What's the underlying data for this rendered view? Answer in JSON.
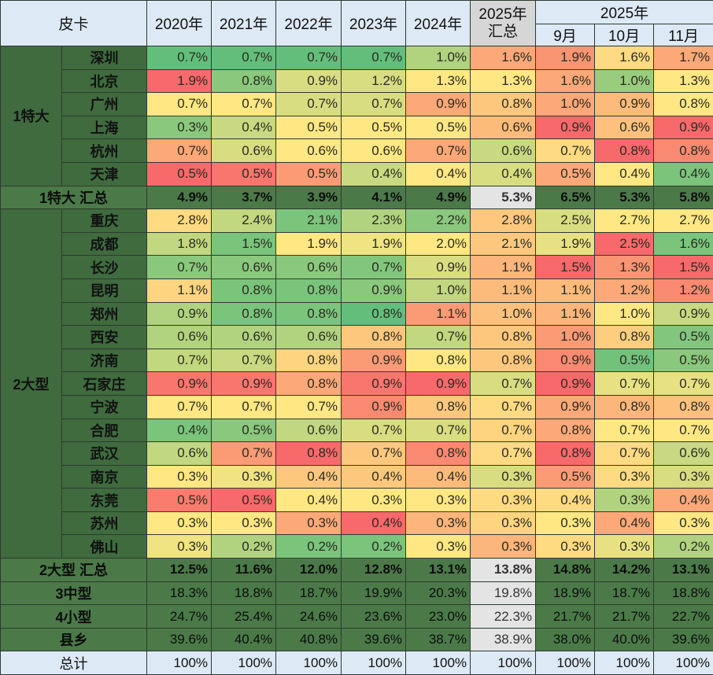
{
  "chart_data": {
    "type": "heatmap",
    "title": "皮卡",
    "header": {
      "corner": "皮卡",
      "years": [
        "2020年",
        "2021年",
        "2022年",
        "2023年",
        "2024年"
      ],
      "summary_top": "2025年",
      "summary_bottom": "汇总",
      "month_group": "2025年",
      "months": [
        "9月",
        "10月",
        "11月"
      ]
    },
    "heat_colors": {
      "low": "#63be7b",
      "mid": "#ffe784",
      "high": "#f8696b"
    },
    "groups": [
      {
        "label": "1特大",
        "rows": [
          {
            "city": "深圳",
            "values": [
              "0.7%",
              "0.7%",
              "0.7%",
              "0.7%",
              "1.0%",
              "1.6%",
              "1.9%",
              "1.6%",
              "1.7%"
            ],
            "heat": [
              0,
              0,
              0,
              0,
              1,
              3,
              3.3,
              2.2,
              3
            ]
          },
          {
            "city": "北京",
            "values": [
              "1.9%",
              "0.8%",
              "0.9%",
              "1.2%",
              "1.3%",
              "1.3%",
              "1.6%",
              "1.0%",
              "1.3%"
            ],
            "heat": [
              4,
              0.5,
              1.5,
              1.5,
              2,
              2,
              3,
              0.7,
              2
            ]
          },
          {
            "city": "广州",
            "values": [
              "0.7%",
              "0.7%",
              "0.7%",
              "0.7%",
              "0.9%",
              "0.8%",
              "1.0%",
              "0.9%",
              "0.8%"
            ],
            "heat": [
              2,
              2,
              1.5,
              1.5,
              3,
              2.5,
              3,
              2.7,
              2
            ]
          },
          {
            "city": "上海",
            "values": [
              "0.3%",
              "0.4%",
              "0.5%",
              "0.5%",
              "0.5%",
              "0.6%",
              "0.9%",
              "0.6%",
              "0.9%"
            ],
            "heat": [
              0.5,
              1.3,
              2,
              2,
              2,
              2.7,
              4,
              2.6,
              4
            ]
          },
          {
            "city": "杭州",
            "values": [
              "0.7%",
              "0.6%",
              "0.6%",
              "0.6%",
              "0.7%",
              "0.6%",
              "0.7%",
              "0.8%",
              "0.8%"
            ],
            "heat": [
              3,
              1.5,
              2,
              2,
              3,
              1.3,
              2.2,
              4,
              3.5
            ]
          },
          {
            "city": "天津",
            "values": [
              "0.5%",
              "0.5%",
              "0.5%",
              "0.4%",
              "0.4%",
              "0.4%",
              "0.5%",
              "0.4%",
              "0.4%"
            ],
            "heat": [
              4,
              3.8,
              3.2,
              1.3,
              2,
              1.5,
              3,
              2,
              0.3
            ]
          }
        ],
        "summary": {
          "label": "1特大 汇总",
          "values": [
            "4.9%",
            "3.7%",
            "3.9%",
            "4.1%",
            "4.9%",
            "5.3%",
            "6.5%",
            "5.3%",
            "5.8%"
          ]
        }
      },
      {
        "label": "2大型",
        "rows": [
          {
            "city": "重庆",
            "values": [
              "2.8%",
              "2.4%",
              "2.1%",
              "2.3%",
              "2.2%",
              "2.8%",
              "2.5%",
              "2.7%",
              "2.7%"
            ],
            "heat": [
              2.2,
              1.2,
              0.3,
              1,
              0.5,
              2.5,
              1.5,
              2,
              2
            ]
          },
          {
            "city": "成都",
            "values": [
              "1.8%",
              "1.5%",
              "1.9%",
              "1.9%",
              "2.0%",
              "2.1%",
              "1.9%",
              "2.5%",
              "1.6%"
            ],
            "heat": [
              1.2,
              0.3,
              2,
              1.8,
              2,
              2.5,
              1.7,
              4,
              0.3
            ]
          },
          {
            "city": "长沙",
            "values": [
              "0.7%",
              "0.6%",
              "0.6%",
              "0.7%",
              "0.9%",
              "1.1%",
              "1.5%",
              "1.3%",
              "1.5%"
            ],
            "heat": [
              0.5,
              0.5,
              0.5,
              0.4,
              1.5,
              2.8,
              4,
              3.3,
              4
            ]
          },
          {
            "city": "昆明",
            "values": [
              "1.1%",
              "0.8%",
              "0.8%",
              "0.9%",
              "1.0%",
              "1.1%",
              "1.1%",
              "1.2%",
              "1.2%"
            ],
            "heat": [
              2.3,
              0.3,
              0.3,
              0.5,
              1.2,
              2.7,
              2.7,
              3,
              3.5
            ]
          },
          {
            "city": "郑州",
            "values": [
              "0.9%",
              "0.8%",
              "0.8%",
              "0.8%",
              "1.1%",
              "1.0%",
              "1.1%",
              "1.0%",
              "0.9%"
            ],
            "heat": [
              1,
              0.3,
              0.3,
              0,
              3.2,
              2.6,
              2.8,
              2,
              1.3
            ]
          },
          {
            "city": "西安",
            "values": [
              "0.6%",
              "0.6%",
              "0.6%",
              "0.8%",
              "0.7%",
              "0.8%",
              "1.0%",
              "0.8%",
              "0.5%"
            ],
            "heat": [
              1,
              1,
              1,
              2.5,
              1.2,
              2.5,
              3.2,
              2.4,
              0.4
            ]
          },
          {
            "city": "济南",
            "values": [
              "0.7%",
              "0.7%",
              "0.8%",
              "0.9%",
              "0.8%",
              "0.8%",
              "0.9%",
              "0.5%",
              "0.5%"
            ],
            "heat": [
              1.2,
              1.3,
              2.3,
              3.2,
              2,
              2.5,
              3.5,
              0.2,
              0.5
            ]
          },
          {
            "city": "石家庄",
            "values": [
              "0.9%",
              "0.9%",
              "0.8%",
              "0.9%",
              "0.9%",
              "0.7%",
              "0.9%",
              "0.7%",
              "0.7%"
            ],
            "heat": [
              3.8,
              3.8,
              3,
              3.8,
              4,
              1.5,
              4,
              1.7,
              1.7
            ]
          },
          {
            "city": "宁波",
            "values": [
              "0.7%",
              "0.7%",
              "0.7%",
              "0.9%",
              "0.8%",
              "0.7%",
              "0.9%",
              "0.8%",
              "0.8%"
            ],
            "heat": [
              2,
              2,
              2,
              3.5,
              2.5,
              2.2,
              3,
              2.8,
              2.6
            ]
          },
          {
            "city": "合肥",
            "values": [
              "0.4%",
              "0.5%",
              "0.6%",
              "0.7%",
              "0.7%",
              "0.7%",
              "0.8%",
              "0.7%",
              "0.7%"
            ],
            "heat": [
              0.3,
              0.5,
              1.2,
              1.5,
              1.5,
              2.3,
              3,
              2,
              2
            ]
          },
          {
            "city": "武汉",
            "values": [
              "0.6%",
              "0.7%",
              "0.8%",
              "0.7%",
              "0.8%",
              "0.7%",
              "0.8%",
              "0.7%",
              "0.6%"
            ],
            "heat": [
              1.2,
              3.2,
              4,
              2.5,
              3.5,
              2.2,
              4,
              2.2,
              1.3
            ]
          },
          {
            "city": "南京",
            "values": [
              "0.3%",
              "0.3%",
              "0.4%",
              "0.4%",
              "0.4%",
              "0.3%",
              "0.5%",
              "0.3%",
              "0.3%"
            ],
            "heat": [
              2,
              1.8,
              2.5,
              2.5,
              2.7,
              1.5,
              3.2,
              2.2,
              1.5
            ]
          },
          {
            "city": "东莞",
            "values": [
              "0.5%",
              "0.5%",
              "0.4%",
              "0.3%",
              "0.3%",
              "0.3%",
              "0.4%",
              "0.3%",
              "0.4%"
            ],
            "heat": [
              3.7,
              4,
              2,
              2,
              2,
              2.2,
              2.2,
              1,
              3
            ]
          },
          {
            "city": "苏州",
            "values": [
              "0.3%",
              "0.3%",
              "0.3%",
              "0.4%",
              "0.3%",
              "0.3%",
              "0.3%",
              "0.4%",
              "0.3%"
            ],
            "heat": [
              2,
              2,
              3,
              4,
              2.8,
              2.3,
              2,
              3,
              2
            ]
          },
          {
            "city": "佛山",
            "values": [
              "0.3%",
              "0.2%",
              "0.2%",
              "0.2%",
              "0.3%",
              "0.3%",
              "0.3%",
              "0.3%",
              "0.2%"
            ],
            "heat": [
              1.8,
              1,
              0.3,
              0.3,
              2,
              2.8,
              2.2,
              1.7,
              1
            ]
          }
        ],
        "summary": {
          "label": "2大型 汇总",
          "values": [
            "12.5%",
            "11.6%",
            "12.0%",
            "12.8%",
            "13.1%",
            "13.8%",
            "14.8%",
            "14.2%",
            "13.1%"
          ]
        }
      }
    ],
    "other_rows": [
      {
        "label": "3中型",
        "values": [
          "18.3%",
          "18.8%",
          "18.7%",
          "19.9%",
          "20.3%",
          "19.8%",
          "18.9%",
          "18.7%",
          "18.8%"
        ]
      },
      {
        "label": "4小型",
        "values": [
          "24.7%",
          "25.4%",
          "24.6%",
          "23.6%",
          "23.0%",
          "22.3%",
          "21.7%",
          "21.7%",
          "22.7%"
        ]
      },
      {
        "label": "县乡",
        "values": [
          "39.6%",
          "40.4%",
          "40.8%",
          "39.6%",
          "38.7%",
          "38.9%",
          "38.0%",
          "40.0%",
          "39.6%"
        ]
      }
    ],
    "total": {
      "label": "总计",
      "values": [
        "100%",
        "100%",
        "100%",
        "100%",
        "100%",
        "100%",
        "100%",
        "100%",
        "100%"
      ]
    }
  }
}
